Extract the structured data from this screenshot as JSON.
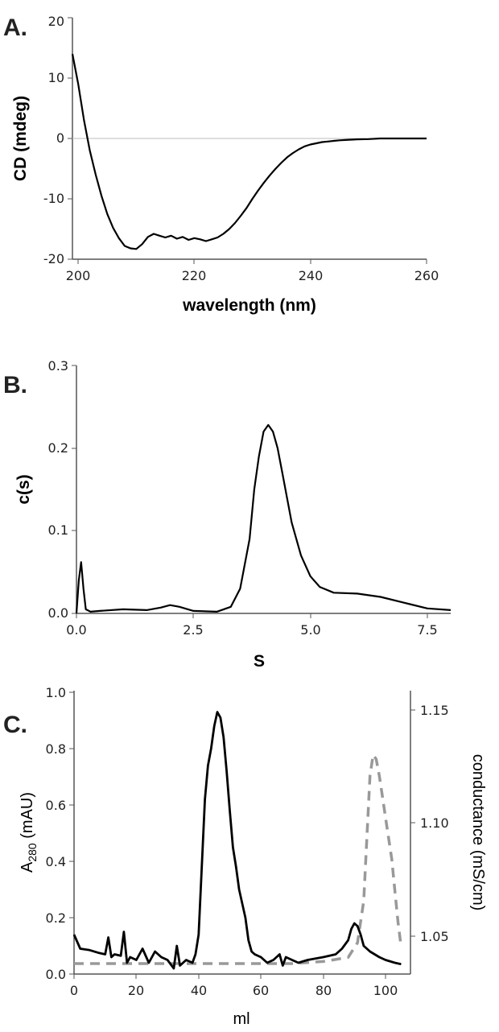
{
  "chart_data": [
    {
      "panel_label": "A.",
      "type": "line",
      "xlabel": "wavelength (nm)",
      "ylabel": "CD (mdeg)",
      "xlim": [
        199,
        260
      ],
      "ylim": [
        -20,
        20
      ],
      "xticks": [
        "200",
        "220",
        "240",
        "260"
      ],
      "yticks": [
        "20",
        "10",
        "0",
        "-10",
        "-20"
      ],
      "reference_line_y": 0,
      "series": [
        {
          "color": "#000000",
          "style": "solid",
          "x": [
            199,
            200,
            201,
            202,
            203,
            204,
            205,
            206,
            207,
            208,
            209,
            210,
            211,
            212,
            213,
            214,
            215,
            216,
            217,
            218,
            219,
            220,
            221,
            222,
            223,
            224,
            225,
            226,
            227,
            228,
            229,
            230,
            231,
            232,
            233,
            234,
            235,
            236,
            237,
            238,
            239,
            240,
            241,
            242,
            243,
            244,
            245,
            246,
            248,
            250,
            252,
            254,
            256,
            258,
            260
          ],
          "y": [
            14,
            9,
            3,
            -2,
            -6,
            -9.5,
            -12.5,
            -14.8,
            -16.5,
            -17.8,
            -18.2,
            -18.3,
            -17.5,
            -16.3,
            -15.8,
            -16.1,
            -16.4,
            -16.1,
            -16.6,
            -16.3,
            -16.8,
            -16.5,
            -16.7,
            -17,
            -16.7,
            -16.4,
            -15.8,
            -15,
            -14,
            -12.8,
            -11.5,
            -10,
            -8.6,
            -7.3,
            -6.1,
            -5,
            -4,
            -3.1,
            -2.4,
            -1.8,
            -1.3,
            -1,
            -0.8,
            -0.6,
            -0.5,
            -0.4,
            -0.3,
            -0.25,
            -0.15,
            -0.1,
            0,
            0,
            0,
            0,
            0
          ]
        }
      ]
    },
    {
      "panel_label": "B.",
      "type": "line",
      "xlabel": "S",
      "ylabel": "c(s)",
      "xlim": [
        0,
        8
      ],
      "ylim": [
        0,
        0.3
      ],
      "xticks": [
        "0.0",
        "2.5",
        "5.0",
        "7.5"
      ],
      "yticks": [
        "0.3",
        "0.2",
        "0.1",
        "0.0"
      ],
      "series": [
        {
          "color": "#000000",
          "style": "solid",
          "x": [
            0,
            0.05,
            0.1,
            0.15,
            0.2,
            0.3,
            0.5,
            1.0,
            1.5,
            1.8,
            2.0,
            2.2,
            2.5,
            3.0,
            3.3,
            3.5,
            3.7,
            3.8,
            3.9,
            4.0,
            4.1,
            4.2,
            4.3,
            4.4,
            4.5,
            4.6,
            4.8,
            5.0,
            5.2,
            5.5,
            6.0,
            6.5,
            7.0,
            7.5,
            8.0
          ],
          "y": [
            0.0,
            0.04,
            0.062,
            0.03,
            0.005,
            0.002,
            0.003,
            0.005,
            0.004,
            0.007,
            0.01,
            0.008,
            0.003,
            0.002,
            0.008,
            0.03,
            0.09,
            0.15,
            0.19,
            0.22,
            0.228,
            0.22,
            0.2,
            0.17,
            0.14,
            0.11,
            0.07,
            0.045,
            0.032,
            0.025,
            0.024,
            0.02,
            0.013,
            0.006,
            0.004
          ]
        }
      ]
    },
    {
      "panel_label": "C.",
      "type": "line",
      "xlabel": "ml",
      "ylabel": "A280 (mAU)",
      "ylabel_main": "A",
      "ylabel_sub": "280",
      "ylabel_rest": " (mAU)",
      "y2label": "conductance (mS/cm)",
      "xlim": [
        0,
        108
      ],
      "ylim": [
        0,
        1.0
      ],
      "y2lim": [
        1.025,
        1.16
      ],
      "xticks": [
        "0",
        "20",
        "40",
        "60",
        "80",
        "100"
      ],
      "yticks": [
        "1.0",
        "0.8",
        "0.6",
        "0.4",
        "0.2",
        "0.0"
      ],
      "y2ticks": [
        "1.15",
        "1.10",
        "1.05"
      ],
      "series": [
        {
          "axis": "left",
          "color": "#000000",
          "style": "solid",
          "x": [
            0,
            2,
            5,
            8,
            10,
            11,
            12,
            13,
            15,
            16,
            17,
            18,
            20,
            22,
            24,
            26,
            28,
            30,
            32,
            33,
            34,
            36,
            38,
            39,
            40,
            41,
            42,
            43,
            44,
            45,
            46,
            47,
            48,
            49,
            50,
            51,
            52,
            53,
            54,
            55,
            56,
            57,
            58,
            60,
            62,
            64,
            66,
            67,
            68,
            70,
            72,
            75,
            80,
            84,
            86,
            88,
            89,
            90,
            91,
            92,
            93,
            95,
            98,
            100,
            103,
            105
          ],
          "y": [
            0.14,
            0.09,
            0.085,
            0.075,
            0.07,
            0.13,
            0.06,
            0.07,
            0.065,
            0.15,
            0.04,
            0.06,
            0.05,
            0.09,
            0.04,
            0.08,
            0.06,
            0.05,
            0.02,
            0.1,
            0.03,
            0.05,
            0.04,
            0.07,
            0.14,
            0.38,
            0.62,
            0.74,
            0.8,
            0.88,
            0.93,
            0.91,
            0.84,
            0.72,
            0.58,
            0.45,
            0.38,
            0.3,
            0.25,
            0.2,
            0.12,
            0.08,
            0.07,
            0.06,
            0.04,
            0.05,
            0.07,
            0.03,
            0.06,
            0.05,
            0.04,
            0.05,
            0.06,
            0.07,
            0.09,
            0.12,
            0.16,
            0.18,
            0.17,
            0.14,
            0.1,
            0.08,
            0.06,
            0.05,
            0.04,
            0.035
          ]
        },
        {
          "axis": "right",
          "color": "#999999",
          "style": "dashed",
          "x": [
            0,
            10,
            20,
            30,
            40,
            50,
            60,
            70,
            80,
            88,
            91,
            93,
            94,
            95,
            96,
            97,
            98,
            99,
            100,
            101,
            102,
            103,
            104,
            105
          ],
          "y": [
            1.03,
            1.03,
            1.03,
            1.03,
            1.03,
            1.03,
            1.03,
            1.03,
            1.031,
            1.033,
            1.04,
            1.06,
            1.09,
            1.12,
            1.13,
            1.128,
            1.12,
            1.11,
            1.1,
            1.09,
            1.08,
            1.065,
            1.05,
            1.038
          ]
        }
      ]
    }
  ]
}
